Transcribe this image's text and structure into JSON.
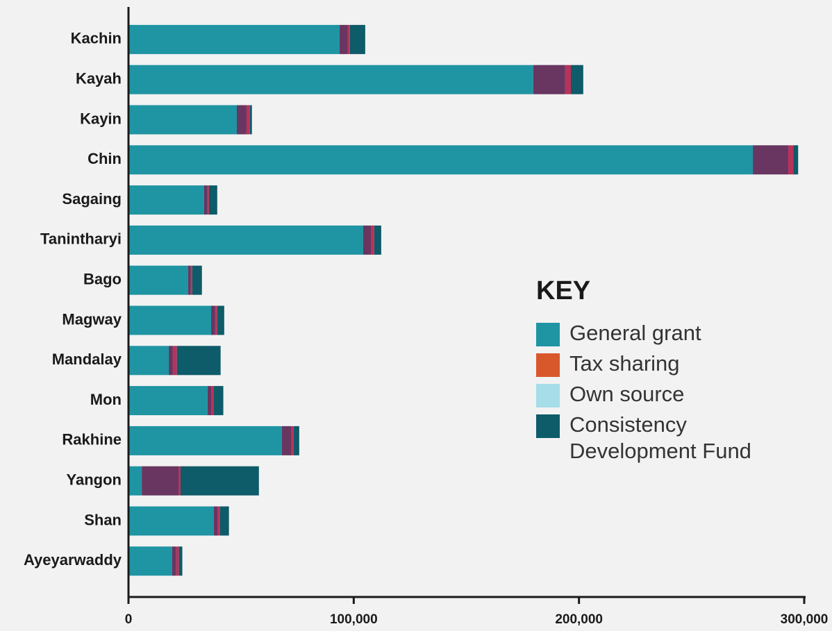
{
  "chart_data": {
    "type": "stacked-horizontal-bar",
    "legend_title": "KEY",
    "categories": [
      "Kachin",
      "Kayah",
      "Kayin",
      "Chin",
      "Sagaing",
      "Tanintharyi",
      "Bago",
      "Magway",
      "Mandalay",
      "Mon",
      "Rakhine",
      "Yangon",
      "Shan",
      "Ayeyarwaddy"
    ],
    "series": [
      {
        "name": "General grant",
        "color": "#1f94a3",
        "key_color": "#1f94a3",
        "values": [
          93700,
          179700,
          48100,
          277200,
          33600,
          104200,
          26500,
          36700,
          17900,
          35100,
          68100,
          5900,
          37900,
          19400
        ]
      },
      {
        "name": "Tax sharing",
        "color": "#683660",
        "key_color": "#d9582b",
        "values": [
          3700,
          14200,
          4300,
          15700,
          1500,
          3400,
          1200,
          1800,
          1800,
          1800,
          4300,
          16300,
          1800,
          1800
        ]
      },
      {
        "name": "Own source",
        "color": "#b8325a",
        "key_color": "#a6dde9",
        "values": [
          900,
          2500,
          1500,
          2200,
          600,
          1500,
          600,
          900,
          1800,
          900,
          900,
          900,
          900,
          1200
        ]
      },
      {
        "name": "Consistency Development Fund",
        "color": "#0e5b69",
        "key_color": "#0e5b69",
        "values": [
          6800,
          5500,
          900,
          2200,
          3700,
          3100,
          4300,
          3100,
          19400,
          4300,
          2500,
          34800,
          4000,
          1500
        ]
      }
    ],
    "xlim": [
      0,
      300000
    ],
    "xticks": [
      {
        "value": 0,
        "label": "0"
      },
      {
        "value": 100000,
        "label": "100,000"
      },
      {
        "value": 200000,
        "label": "200,000"
      },
      {
        "value": 300000,
        "label": "300,000"
      }
    ]
  }
}
